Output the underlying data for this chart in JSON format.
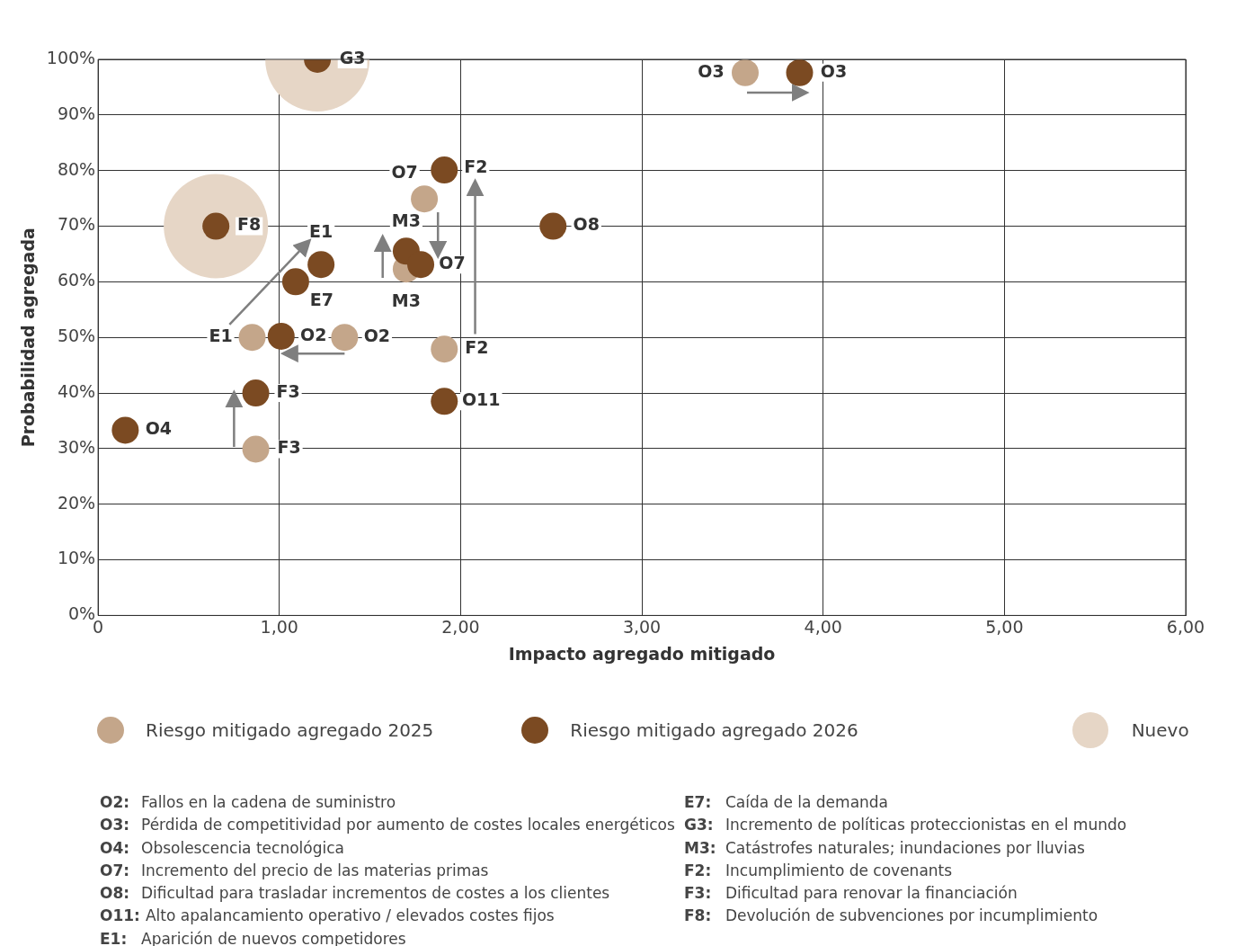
{
  "chart_data": {
    "type": "scatter",
    "xlabel": "Impacto agregado mitigado",
    "ylabel": "Probabilidad agregada",
    "xlim": [
      0,
      6
    ],
    "xticks": [
      0,
      {
        "value": 1,
        "label": "1,00"
      },
      {
        "value": 2,
        "label": "2,00"
      },
      {
        "value": 3,
        "label": "3,00"
      },
      {
        "value": 4,
        "label": "4,00"
      },
      {
        "value": 5,
        "label": "5,00"
      },
      {
        "value": 6,
        "label": "6,00"
      }
    ],
    "ylim": [
      0,
      100
    ],
    "yticks": [
      {
        "value": 0,
        "label": "0%"
      },
      {
        "value": 10,
        "label": "10%"
      },
      {
        "value": 20,
        "label": "20%"
      },
      {
        "value": 30,
        "label": "30%"
      },
      {
        "value": 40,
        "label": "40%"
      },
      {
        "value": 50,
        "label": "50%"
      },
      {
        "value": 60,
        "label": "60%"
      },
      {
        "value": 70,
        "label": "70%"
      },
      {
        "value": 80,
        "label": "80%"
      },
      {
        "value": 90,
        "label": "90%"
      },
      {
        "value": 100,
        "label": "100%"
      }
    ],
    "grid": true,
    "legend": "bottom",
    "marker": "circle",
    "series": [
      {
        "name": "Riesgo mitigado agregado 2025",
        "type": "scatter",
        "color": "#c4a68a",
        "x": [
          3.57,
          1.8,
          1.7,
          0.85,
          1.36,
          1.91,
          0.87
        ],
        "values": [
          97.6,
          74.9,
          62.3,
          50,
          50,
          47.9,
          29.9
        ]
      },
      {
        "name": "Riesgo mitigado agregado 2026",
        "type": "scatter",
        "color": "#7b4a22",
        "x": [
          1.21,
          3.87,
          1.91,
          0.65,
          2.51,
          1.7,
          1.23,
          1.78,
          1.09,
          1.01,
          0.87,
          1.91,
          0.15
        ],
        "values": [
          100,
          97.6,
          80.1,
          70,
          70,
          65.5,
          63.1,
          63.1,
          60,
          50.2,
          40,
          38.5,
          33.3
        ]
      },
      {
        "name": "Nuevo",
        "type": "bubble",
        "color": "#e6d6c6",
        "x": [
          1.21,
          0.65
        ],
        "values": [
          100,
          70
        ],
        "sizes": [
          1,
          1
        ]
      }
    ],
    "annotations": [
      {
        "text": "G3",
        "x": 1.21,
        "y": 100
      },
      {
        "text": "O3",
        "x": 3.57,
        "y": 97.6
      },
      {
        "text": "O3",
        "x": 3.87,
        "y": 97.6
      },
      {
        "text": "O7",
        "x": 1.8,
        "y": 74.9
      },
      {
        "text": "F2",
        "x": 1.91,
        "y": 80.1
      },
      {
        "text": "F8",
        "x": 0.65,
        "y": 70
      },
      {
        "text": "M3",
        "x": 1.7,
        "y": 65.5
      },
      {
        "text": "O8",
        "x": 2.51,
        "y": 70
      },
      {
        "text": "E1",
        "x": 1.23,
        "y": 63.1
      },
      {
        "text": "O7",
        "x": 1.78,
        "y": 63.1
      },
      {
        "text": "E7",
        "x": 1.09,
        "y": 60
      },
      {
        "text": "M3",
        "x": 1.7,
        "y": 62.3
      },
      {
        "text": "E1",
        "x": 0.85,
        "y": 50
      },
      {
        "text": "O2",
        "x": 1.01,
        "y": 50.2
      },
      {
        "text": "O2",
        "x": 1.36,
        "y": 50
      },
      {
        "text": "F2",
        "x": 1.91,
        "y": 47.9
      },
      {
        "text": "F3",
        "x": 0.87,
        "y": 40
      },
      {
        "text": "O11",
        "x": 1.91,
        "y": 38.5
      },
      {
        "text": "O4",
        "x": 0.15,
        "y": 33.3
      },
      {
        "text": "F3",
        "x": 0.87,
        "y": 29.9
      },
      "O2: Fallos en la cadena de suministro",
      "O3: Pérdida de competitividad por aumento de costes locales energéticos",
      "O4: Obsolescencia tecnológica",
      "O7: Incremento del precio de las materias primas",
      "O8: Dificultad para trasladar incrementos de costes a los clientes",
      "O11: Alto apalancamiento operativo / elevados costes fijos",
      "E1: Aparición de nuevos competidores",
      "E7: Caída de la demanda",
      "G3: Incremento de políticas proteccionistas en el mundo",
      "M3: Catástrofes naturales; inundaciones por lluvias",
      "F2: Incumplimiento de covenants",
      "F3: Dificultad para renovar la financiación",
      "F8: Devolución de subvenciones por incumplimiento"
    ]
  }
}
